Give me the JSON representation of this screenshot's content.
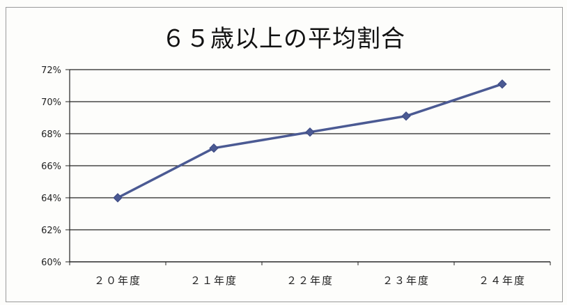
{
  "chart_data": {
    "type": "line",
    "title": "６５歳以上の平均割合",
    "categories": [
      "２０年度",
      "２１年度",
      "２２年度",
      "２３年度",
      "２４年度"
    ],
    "series": [
      {
        "values": [
          64.0,
          67.1,
          68.1,
          69.1,
          71.1
        ]
      }
    ],
    "y_tick_labels": [
      "60%",
      "62%",
      "64%",
      "66%",
      "68%",
      "70%",
      "72%"
    ],
    "y_ticks": [
      60,
      62,
      64,
      66,
      68,
      70,
      72
    ],
    "ylim": [
      60,
      72
    ],
    "grid": true,
    "legend": "none",
    "colors": {
      "line": "#4b5a93",
      "marker": "#4b5a93",
      "grid": "#222222",
      "axis": "#222222"
    }
  }
}
